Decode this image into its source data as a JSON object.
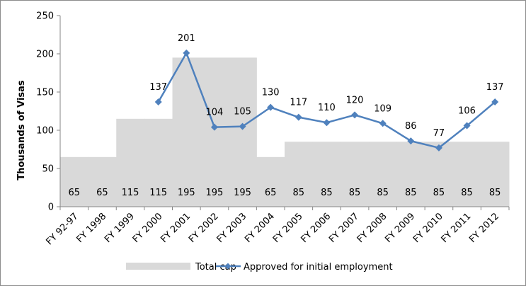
{
  "chart_data": {
    "type": "bar+line",
    "title": "",
    "xlabel": "",
    "ylabel": "Thousands of Visas",
    "ylim": [
      0,
      250
    ],
    "yticks": [
      0,
      50,
      100,
      150,
      200,
      250
    ],
    "grid": false,
    "legend_position": "bottom",
    "categories": [
      "FY 92-97",
      "FY 1998",
      "FY 1999",
      "FY 2000",
      "FY 2001",
      "FY 2002",
      "FY 2003",
      "FY 2004",
      "FY 2005",
      "FY 2006",
      "FY 2007",
      "FY 2008",
      "FY 2009",
      "FY 2010",
      "FY 2011",
      "FY 2012"
    ],
    "series": [
      {
        "name": "Total cap",
        "type": "area-step",
        "color": "#d9d9d9",
        "values": [
          65,
          65,
          115,
          115,
          195,
          195,
          195,
          65,
          85,
          85,
          85,
          85,
          85,
          85,
          85,
          85
        ],
        "labels": [
          "65",
          "65",
          "115",
          "115",
          "195",
          "195",
          "195",
          "65",
          "85",
          "85",
          "85",
          "85",
          "85",
          "85",
          "85",
          "85"
        ]
      },
      {
        "name": "Approved for initial employment",
        "type": "line",
        "color": "#4f81bd",
        "marker": "diamond",
        "values": [
          null,
          null,
          null,
          137,
          201,
          104,
          105,
          130,
          117,
          110,
          120,
          109,
          86,
          77,
          106,
          137
        ],
        "labels": [
          null,
          null,
          null,
          "137",
          "201",
          "104",
          "105",
          "130",
          "117",
          "110",
          "120",
          "109",
          "86",
          "77",
          "106",
          "137"
        ]
      }
    ]
  }
}
